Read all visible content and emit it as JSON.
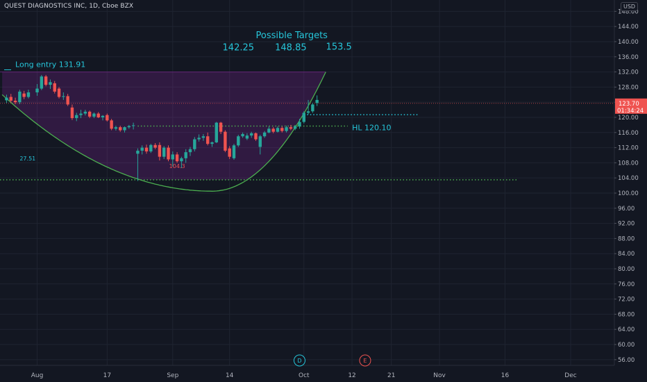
{
  "header": {
    "title": "QUEST DIAGNOSTICS INC, 1D, Cboe BZX",
    "currency": "USD"
  },
  "colors": {
    "background": "#131722",
    "grid": "#1f2431",
    "axis_text": "#b2b5be",
    "up": "#26a69a",
    "down": "#ef5350",
    "cup_curve": "#4caf50",
    "zone_fill": "#9c27b0",
    "annotation_text": "#26c6da",
    "dotted_green": "#4caf50",
    "dotted_cyan": "#26c6da",
    "current_price_bg": "#ef5350"
  },
  "chart_data": {
    "type": "candlestick",
    "y_axis": {
      "ylim": [
        54.5,
        151
      ],
      "ticks": [
        56,
        60,
        64,
        68,
        72,
        76,
        80,
        84,
        88,
        92,
        96,
        100,
        104,
        108,
        112,
        116,
        120,
        124,
        128,
        132,
        136,
        140,
        144,
        148
      ],
      "tick_labels": [
        "56.00",
        "60.00",
        "64.00",
        "68.00",
        "72.00",
        "76.00",
        "80.00",
        "84.00",
        "88.00",
        "92.00",
        "96.00",
        "100.00",
        "104.00",
        "108.00",
        "112.00",
        "116.00",
        "120.00",
        "124.00",
        "128.00",
        "132.00",
        "136.00",
        "140.00",
        "144.00",
        "148.00"
      ]
    },
    "x_axis": {
      "labels": [
        {
          "text": "Aug",
          "day": 1
        },
        {
          "text": "17",
          "day": 17
        },
        {
          "text": "Sep",
          "day": 32
        },
        {
          "text": "14",
          "day": 45
        },
        {
          "text": "Oct",
          "day": 62
        },
        {
          "text": "12",
          "day": 73
        },
        {
          "text": "21",
          "day": 82
        },
        {
          "text": "Nov",
          "day": 93
        },
        {
          "text": "16",
          "day": 108
        },
        {
          "text": "Dec",
          "day": 123
        }
      ]
    },
    "candles": [
      {
        "day": -6,
        "o": 124.5,
        "h": 126.0,
        "l": 123.8,
        "c": 125.2
      },
      {
        "day": -5,
        "o": 125.4,
        "h": 126.2,
        "l": 123.9,
        "c": 124.4
      },
      {
        "day": -4,
        "o": 124.4,
        "h": 125.2,
        "l": 123.5,
        "c": 124.0
      },
      {
        "day": -3,
        "o": 124.0,
        "h": 127.3,
        "l": 123.5,
        "c": 126.8
      },
      {
        "day": -2,
        "o": 126.3,
        "h": 127.0,
        "l": 124.8,
        "c": 125.4
      },
      {
        "day": -1,
        "o": 125.4,
        "h": 127.3,
        "l": 125.0,
        "c": 126.6
      },
      {
        "day": 1,
        "o": 126.6,
        "h": 128.8,
        "l": 125.7,
        "c": 127.6
      },
      {
        "day": 2,
        "o": 127.6,
        "h": 131.2,
        "l": 127.2,
        "c": 130.8
      },
      {
        "day": 3,
        "o": 130.8,
        "h": 131.2,
        "l": 128.2,
        "c": 128.6
      },
      {
        "day": 4,
        "o": 128.6,
        "h": 130.0,
        "l": 127.5,
        "c": 129.3
      },
      {
        "day": 5,
        "o": 129.0,
        "h": 129.6,
        "l": 126.3,
        "c": 126.8
      },
      {
        "day": 6,
        "o": 127.6,
        "h": 128.0,
        "l": 125.0,
        "c": 125.4
      },
      {
        "day": 7,
        "o": 125.4,
        "h": 126.6,
        "l": 124.6,
        "c": 125.6
      },
      {
        "day": 8,
        "o": 125.6,
        "h": 126.2,
        "l": 123.0,
        "c": 123.4
      },
      {
        "day": 9,
        "o": 122.6,
        "h": 123.4,
        "l": 119.3,
        "c": 119.8
      },
      {
        "day": 10,
        "o": 119.8,
        "h": 121.2,
        "l": 119.0,
        "c": 120.6
      },
      {
        "day": 11,
        "o": 120.6,
        "h": 122.0,
        "l": 119.8,
        "c": 121.0
      },
      {
        "day": 12,
        "o": 121.0,
        "h": 122.0,
        "l": 120.5,
        "c": 121.5
      },
      {
        "day": 13,
        "o": 121.5,
        "h": 121.8,
        "l": 119.8,
        "c": 120.2
      },
      {
        "day": 14,
        "o": 120.2,
        "h": 121.3,
        "l": 119.8,
        "c": 121.0
      },
      {
        "day": 15,
        "o": 121.0,
        "h": 121.4,
        "l": 119.8,
        "c": 120.0
      },
      {
        "day": 16,
        "o": 120.0,
        "h": 120.6,
        "l": 119.2,
        "c": 120.4
      },
      {
        "day": 17,
        "o": 120.6,
        "h": 121.0,
        "l": 118.9,
        "c": 119.2
      },
      {
        "day": 18,
        "o": 119.2,
        "h": 119.6,
        "l": 116.6,
        "c": 117.0
      },
      {
        "day": 19,
        "o": 117.0,
        "h": 117.8,
        "l": 116.5,
        "c": 117.4
      },
      {
        "day": 20,
        "o": 117.4,
        "h": 117.8,
        "l": 116.2,
        "c": 116.6
      },
      {
        "day": 21,
        "o": 116.6,
        "h": 117.6,
        "l": 116.0,
        "c": 117.4
      },
      {
        "day": 22,
        "o": 117.4,
        "h": 118.0,
        "l": 117.0,
        "c": 117.7
      },
      {
        "day": 23,
        "o": 117.7,
        "h": 118.6,
        "l": 116.8,
        "c": 117.9
      },
      {
        "day": 24,
        "o": 110.4,
        "h": 111.8,
        "l": 103.2,
        "c": 111.2
      },
      {
        "day": 25,
        "o": 111.2,
        "h": 112.6,
        "l": 110.2,
        "c": 112.0
      },
      {
        "day": 26,
        "o": 112.0,
        "h": 112.8,
        "l": 110.4,
        "c": 111.0
      },
      {
        "day": 27,
        "o": 111.0,
        "h": 113.0,
        "l": 110.6,
        "c": 112.7
      },
      {
        "day": 28,
        "o": 112.7,
        "h": 113.2,
        "l": 111.6,
        "c": 112.0
      },
      {
        "day": 29,
        "o": 112.7,
        "h": 113.4,
        "l": 108.6,
        "c": 109.6
      },
      {
        "day": 30,
        "o": 109.6,
        "h": 112.4,
        "l": 109.0,
        "c": 112.0
      },
      {
        "day": 31,
        "o": 112.0,
        "h": 112.6,
        "l": 108.4,
        "c": 108.9
      },
      {
        "day": 32,
        "o": 108.9,
        "h": 111.0,
        "l": 107.0,
        "c": 110.2
      },
      {
        "day": 33,
        "o": 110.2,
        "h": 110.8,
        "l": 108.0,
        "c": 108.4
      },
      {
        "day": 34,
        "o": 108.4,
        "h": 109.6,
        "l": 106.6,
        "c": 109.2
      },
      {
        "day": 35,
        "o": 109.2,
        "h": 111.6,
        "l": 108.0,
        "c": 110.8
      },
      {
        "day": 36,
        "o": 110.8,
        "h": 112.2,
        "l": 109.8,
        "c": 111.6
      },
      {
        "day": 37,
        "o": 111.6,
        "h": 114.8,
        "l": 111.0,
        "c": 114.2
      },
      {
        "day": 38,
        "o": 114.2,
        "h": 115.5,
        "l": 113.6,
        "c": 114.6
      },
      {
        "day": 39,
        "o": 114.6,
        "h": 115.6,
        "l": 113.8,
        "c": 115.0
      },
      {
        "day": 40,
        "o": 115.0,
        "h": 116.0,
        "l": 112.6,
        "c": 113.0
      },
      {
        "day": 41,
        "o": 113.0,
        "h": 113.6,
        "l": 112.2,
        "c": 113.4
      },
      {
        "day": 42,
        "o": 113.4,
        "h": 118.8,
        "l": 113.2,
        "c": 118.6
      },
      {
        "day": 43,
        "o": 118.6,
        "h": 118.8,
        "l": 115.6,
        "c": 116.2
      },
      {
        "day": 44,
        "o": 116.2,
        "h": 116.6,
        "l": 110.8,
        "c": 111.2
      },
      {
        "day": 45,
        "o": 111.8,
        "h": 112.4,
        "l": 109.0,
        "c": 109.6
      },
      {
        "day": 46,
        "o": 109.2,
        "h": 113.0,
        "l": 108.8,
        "c": 112.6
      },
      {
        "day": 47,
        "o": 112.6,
        "h": 115.4,
        "l": 112.2,
        "c": 115.0
      },
      {
        "day": 48,
        "o": 115.0,
        "h": 116.0,
        "l": 114.6,
        "c": 115.6
      },
      {
        "day": 49,
        "o": 114.4,
        "h": 115.8,
        "l": 114.0,
        "c": 115.2
      },
      {
        "day": 50,
        "o": 115.2,
        "h": 116.2,
        "l": 114.6,
        "c": 115.8
      },
      {
        "day": 51,
        "o": 115.8,
        "h": 116.0,
        "l": 113.8,
        "c": 114.2
      },
      {
        "day": 52,
        "o": 112.2,
        "h": 115.4,
        "l": 110.2,
        "c": 115.0
      },
      {
        "day": 53,
        "o": 115.0,
        "h": 116.4,
        "l": 114.6,
        "c": 116.0
      },
      {
        "day": 54,
        "o": 116.0,
        "h": 117.6,
        "l": 115.8,
        "c": 117.0
      },
      {
        "day": 55,
        "o": 117.0,
        "h": 117.4,
        "l": 115.8,
        "c": 116.2
      },
      {
        "day": 56,
        "o": 116.2,
        "h": 117.6,
        "l": 116.0,
        "c": 117.2
      },
      {
        "day": 57,
        "o": 117.2,
        "h": 117.6,
        "l": 116.0,
        "c": 116.4
      },
      {
        "day": 58,
        "o": 116.4,
        "h": 117.8,
        "l": 116.0,
        "c": 117.4
      },
      {
        "day": 59,
        "o": 117.4,
        "h": 118.0,
        "l": 116.6,
        "c": 117.0
      },
      {
        "day": 60,
        "o": 117.0,
        "h": 118.0,
        "l": 116.6,
        "c": 117.6
      },
      {
        "day": 61,
        "o": 117.6,
        "h": 119.6,
        "l": 117.0,
        "c": 118.8
      },
      {
        "day": 62,
        "o": 118.8,
        "h": 121.6,
        "l": 118.4,
        "c": 121.2
      },
      {
        "day": 63,
        "o": 121.2,
        "h": 124.6,
        "l": 120.8,
        "c": 121.6
      },
      {
        "day": 64,
        "o": 121.6,
        "h": 123.8,
        "l": 121.2,
        "c": 123.4
      },
      {
        "day": 65,
        "o": 123.8,
        "h": 125.8,
        "l": 123.0,
        "c": 124.6
      }
    ],
    "x_domain": [
      -7.5,
      133
    ],
    "cup_curve": {
      "min_day": 41,
      "min_price": 100.5,
      "left_day": -7,
      "left_price": 126,
      "right_day": 67,
      "right_price": 132
    },
    "zone": {
      "from_day": -7.5,
      "to_day": 67,
      "top": 132,
      "bottom": 103.5
    },
    "levels": [
      {
        "name": "support-104",
        "from_day": -7.5,
        "to_day": 111,
        "price": 103.5,
        "color_key": "dotted_green"
      },
      {
        "name": "resistance-117",
        "from_day": 24,
        "to_day": 72,
        "price": 117.7,
        "color_key": "dotted_green"
      },
      {
        "name": "hl-120",
        "from_day": 62,
        "to_day": 88,
        "price": 120.7,
        "color_key": "dotted_cyan"
      }
    ],
    "annotations": {
      "long_entry": {
        "text": "Long entry  131.91",
        "day": -4,
        "price": 133.3
      },
      "hl": {
        "text": "HL  120.10",
        "day": 73,
        "price": 116.6
      },
      "possible_targets": {
        "text": "Possible Targets",
        "day": 51,
        "price": 140.9
      },
      "targets": [
        {
          "text": "142.25",
          "day": 47,
          "price": 137.7
        },
        {
          "text": "148.85",
          "day": 59,
          "price": 137.7
        },
        {
          "text": "153.5",
          "day": 70,
          "price": 137.9
        }
      ],
      "low_label": {
        "text": "104.3",
        "day": 33,
        "price": 106.6
      },
      "side_label": {
        "text": "27.51",
        "day": -3,
        "price": 108.6
      }
    },
    "current_price": {
      "value": 123.7,
      "label": "123.70",
      "timer": "01:34:24"
    },
    "event_markers": [
      {
        "letter": "D",
        "day": 61,
        "color": "#26c6da"
      },
      {
        "letter": "E",
        "day": 76,
        "color": "#ef5350"
      }
    ]
  }
}
